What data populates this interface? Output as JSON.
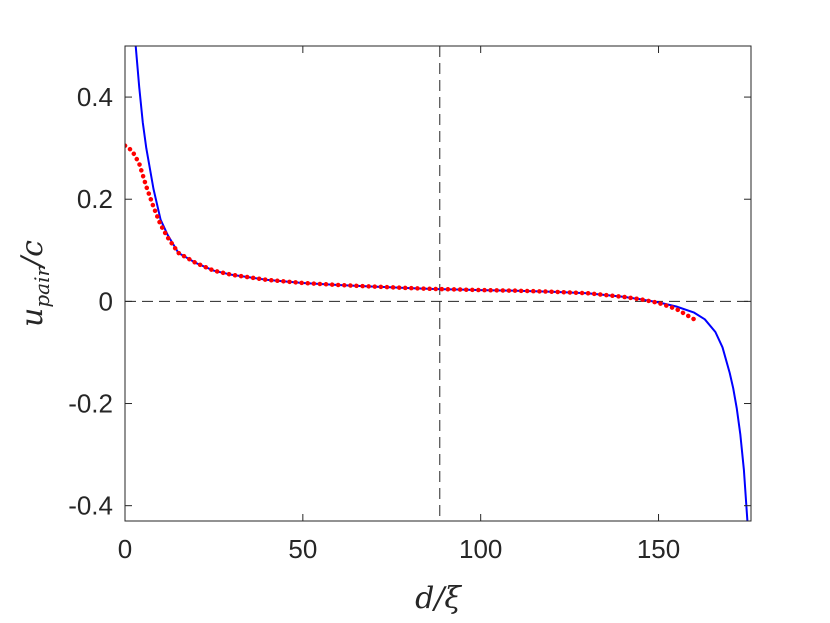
{
  "chart_data": {
    "type": "line",
    "xlabel": "d/ξ",
    "ylabel": "u_pair/c",
    "ylabel_main": "u",
    "ylabel_sub": "pair",
    "ylabel_tail": "/c",
    "xlim": [
      0,
      176
    ],
    "ylim": [
      -0.43,
      0.5
    ],
    "xticks": [
      0,
      50,
      100,
      150
    ],
    "xtick_labels": [
      "0",
      "50",
      "100",
      "150"
    ],
    "yticks": [
      0.4,
      0.2,
      0,
      -0.2,
      -0.4
    ],
    "ytick_labels": [
      "0.4",
      "0.2",
      "0",
      "-0.2",
      "-0.4"
    ],
    "grid": false,
    "reference_lines": {
      "horizontal_y": 0,
      "vertical_x": 88.5
    },
    "series": [
      {
        "style": "solid",
        "color": "#0000ff",
        "x": [
          3,
          4,
          5,
          6,
          8,
          10,
          12,
          15,
          20,
          25,
          30,
          40,
          50,
          60,
          70,
          80,
          88,
          95,
          100,
          110,
          120,
          130,
          140,
          145,
          150,
          155,
          160,
          163,
          166,
          168,
          170,
          171,
          172,
          173,
          174,
          175
        ],
        "y": [
          0.5,
          0.42,
          0.35,
          0.3,
          0.22,
          0.16,
          0.13,
          0.095,
          0.075,
          0.06,
          0.052,
          0.042,
          0.036,
          0.032,
          0.029,
          0.026,
          0.024,
          0.023,
          0.022,
          0.021,
          0.019,
          0.016,
          0.009,
          0.004,
          -0.002,
          -0.01,
          -0.022,
          -0.035,
          -0.06,
          -0.09,
          -0.14,
          -0.17,
          -0.21,
          -0.26,
          -0.33,
          -0.43
        ]
      },
      {
        "style": "dotted",
        "color": "#ff0000",
        "x": [
          0,
          2,
          4,
          6,
          8,
          10,
          12,
          15,
          20,
          25,
          30,
          40,
          50,
          60,
          70,
          80,
          88,
          95,
          100,
          110,
          120,
          130,
          140,
          145,
          150,
          155,
          160
        ],
        "y": [
          0.305,
          0.295,
          0.27,
          0.225,
          0.185,
          0.15,
          0.125,
          0.095,
          0.075,
          0.06,
          0.052,
          0.042,
          0.036,
          0.032,
          0.029,
          0.026,
          0.024,
          0.023,
          0.022,
          0.021,
          0.019,
          0.016,
          0.009,
          0.004,
          -0.003,
          -0.015,
          -0.035
        ]
      }
    ]
  }
}
